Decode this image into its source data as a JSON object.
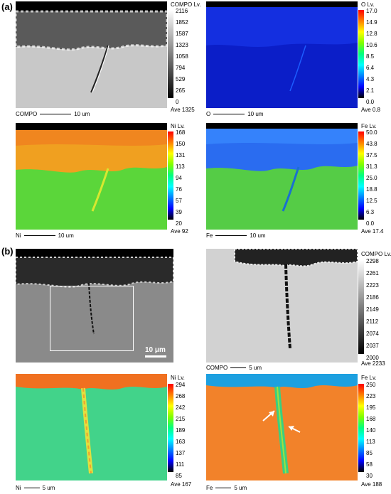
{
  "labels": {
    "a": "(a)",
    "b": "(b)"
  },
  "panels": {
    "a_compo": {
      "map": "COMPO",
      "level_title": "COMPO Lv.",
      "ticks": [
        "2116",
        "1852",
        "1587",
        "1323",
        "1058",
        "794",
        "529",
        "265",
        "0"
      ],
      "ave": "Ave 1325",
      "scale": "10 um"
    },
    "a_o": {
      "map": "O",
      "level_title": "O Lv.",
      "ticks": [
        "17.0",
        "14.9",
        "12.8",
        "10.6",
        "8.5",
        "6.4",
        "4.3",
        "2.1",
        "0.0"
      ],
      "ave": "Ave 0.8",
      "scale": "10 um"
    },
    "a_ni": {
      "map": "Ni",
      "level_title": "Ni Lv.",
      "ticks": [
        "168",
        "150",
        "131",
        "113",
        "94",
        "76",
        "57",
        "39",
        "20"
      ],
      "ave": "Ave 92",
      "scale": "10 um"
    },
    "a_fe": {
      "map": "Fe",
      "level_title": "Fe Lv.",
      "ticks": [
        "50.0",
        "43.8",
        "37.5",
        "31.3",
        "25.0",
        "18.8",
        "12.5",
        "6.3",
        "0.0"
      ],
      "ave": "Ave 17.4",
      "scale": "10 um"
    },
    "b_sem": {
      "scalebar": "10 μm"
    },
    "b_compo": {
      "map": "COMPO",
      "level_title": "COMPO Lv.",
      "ticks": [
        "2298",
        "2261",
        "2223",
        "2186",
        "2149",
        "2112",
        "2074",
        "2037",
        "2000"
      ],
      "ave": "Ave 2233",
      "scale": "5 um"
    },
    "b_ni": {
      "map": "Ni",
      "level_title": "Ni Lv.",
      "ticks": [
        "294",
        "268",
        "242",
        "215",
        "189",
        "163",
        "137",
        "111",
        "85"
      ],
      "ave": "Ave 167",
      "scale": "5 um"
    },
    "b_fe": {
      "map": "Fe",
      "level_title": "Fe Lv.",
      "ticks": [
        "250",
        "223",
        "195",
        "168",
        "140",
        "113",
        "85",
        "58",
        "30"
      ],
      "ave": "Ave 188",
      "scale": "5 um"
    }
  },
  "colors": {
    "rainbow": [
      "#ff0000",
      "#ff8000",
      "#ffff00",
      "#80ff00",
      "#00ff80",
      "#00ffff",
      "#0080ff",
      "#0000ff",
      "#000000"
    ],
    "gray": [
      "#ffffff",
      "#000000"
    ]
  }
}
